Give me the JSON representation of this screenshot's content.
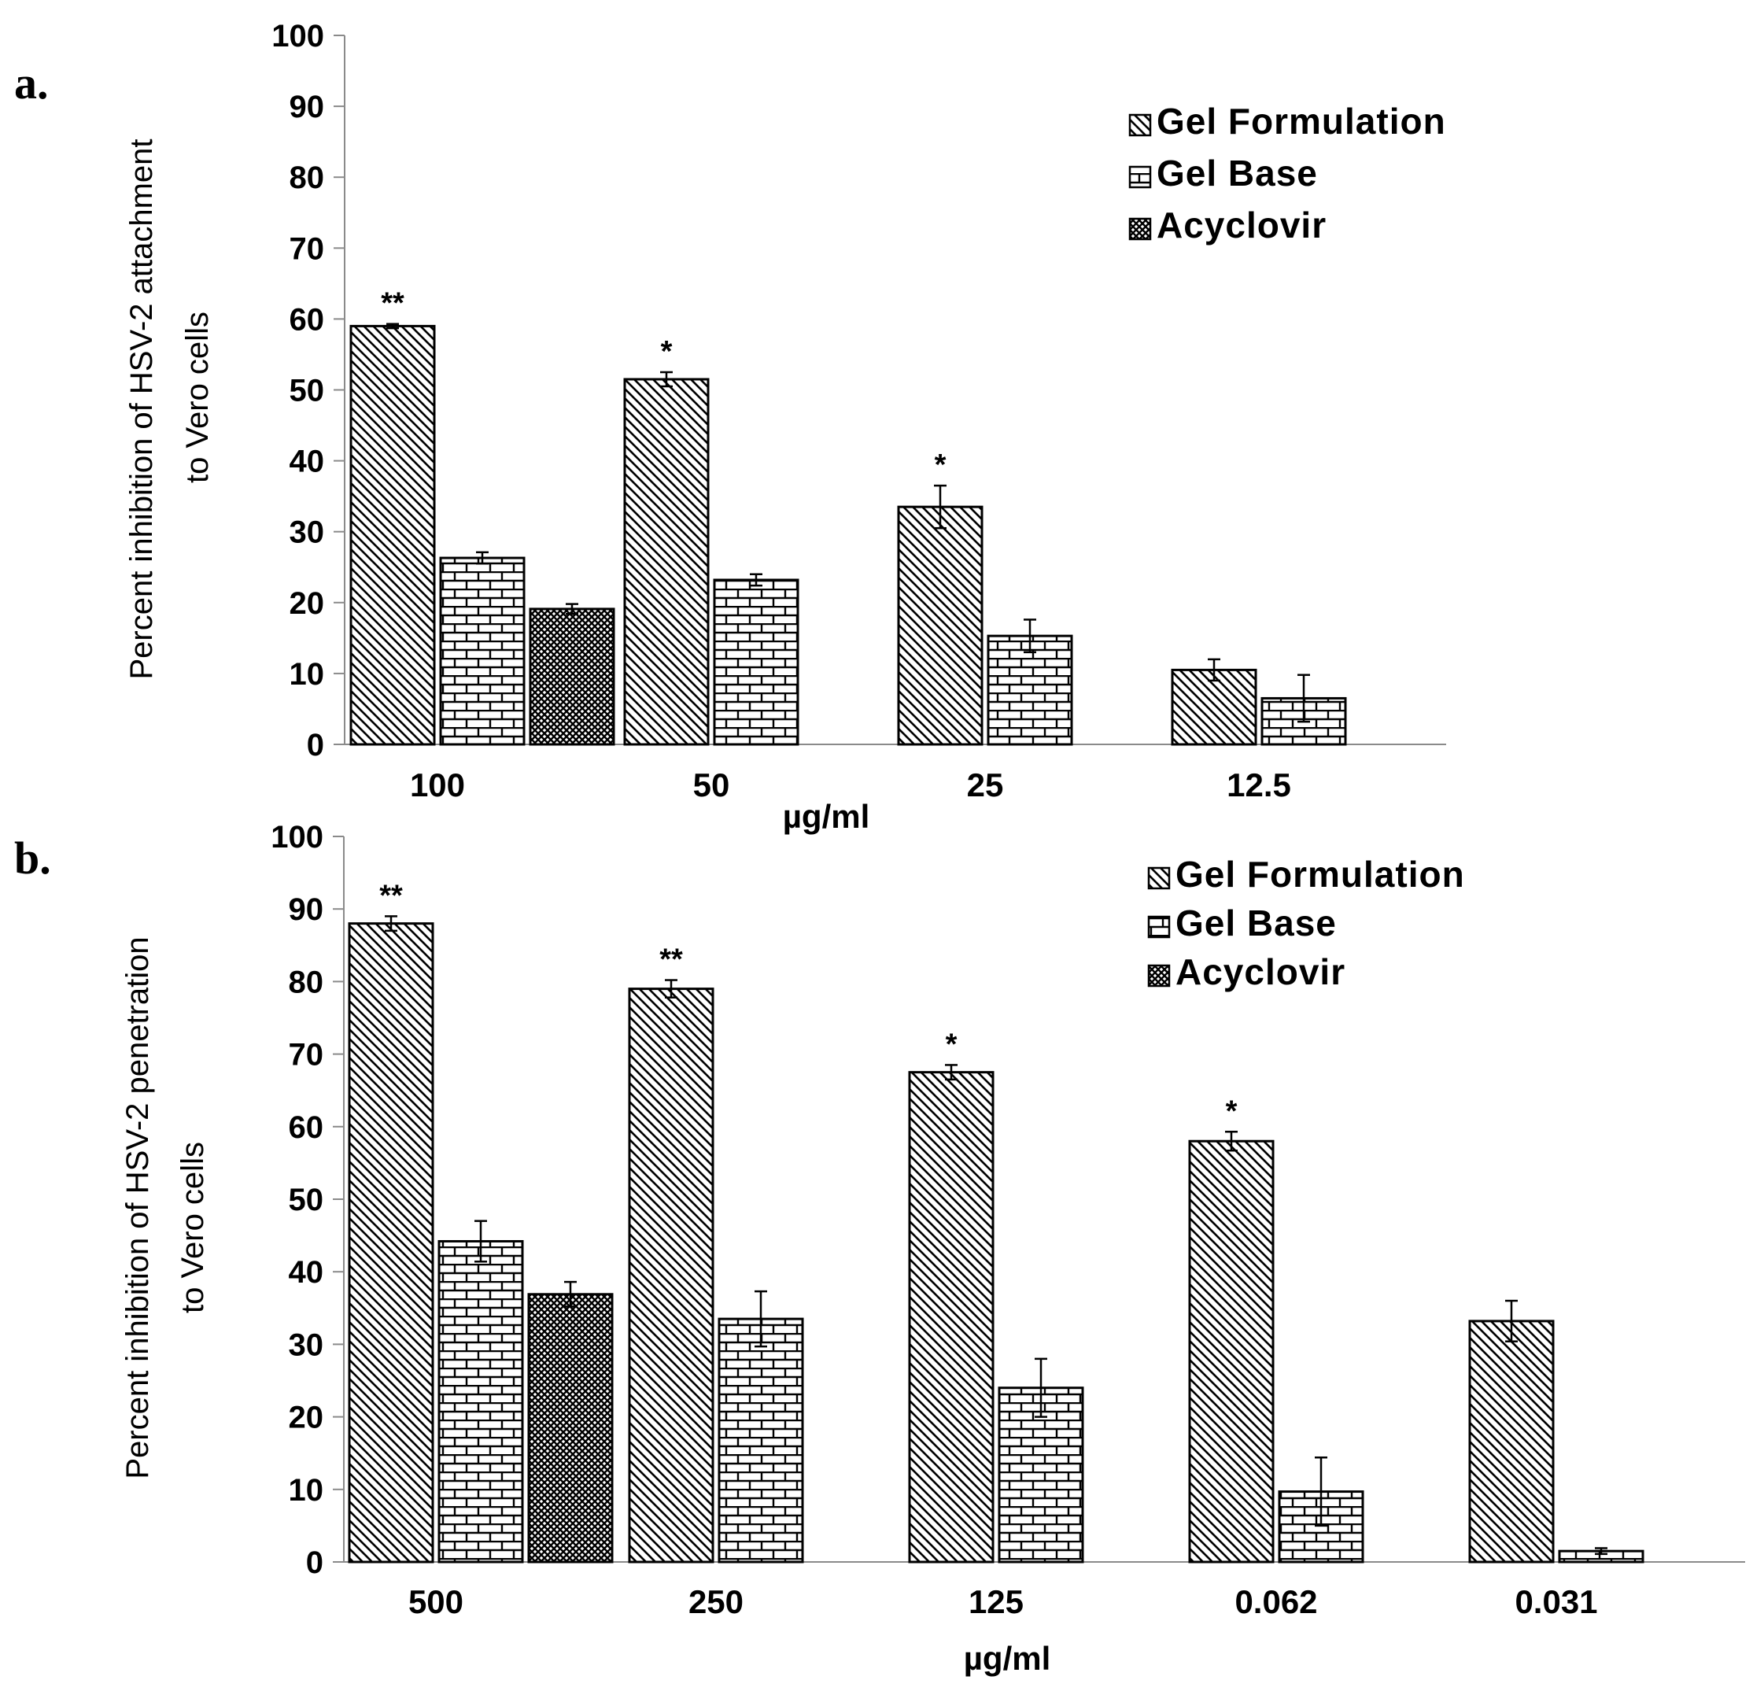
{
  "chart_data": [
    {
      "panel": "a.",
      "type": "bar",
      "categories": [
        "100",
        "50",
        "25",
        "12.5"
      ],
      "xlabel": "µg/ml",
      "ylabel_lines": [
        "Percent inhibition of HSV-2 attachment",
        "to Vero cells"
      ],
      "ylim": [
        0,
        100
      ],
      "yticks": [
        0,
        10,
        20,
        30,
        40,
        50,
        60,
        70,
        80,
        90,
        100
      ],
      "legend": [
        "Gel Formulation",
        "Gel Base",
        "Acyclovir"
      ],
      "series": [
        {
          "name": "Gel Formulation",
          "pattern": "diag",
          "values": [
            59,
            51.5,
            33.5,
            10.5
          ],
          "errors": [
            0.3,
            1.0,
            3.0,
            1.5
          ],
          "significance": [
            "**",
            "*",
            "*",
            ""
          ]
        },
        {
          "name": "Gel Base",
          "pattern": "brick",
          "values": [
            26.3,
            23.2,
            15.3,
            6.5
          ],
          "errors": [
            0.8,
            0.8,
            2.3,
            3.3
          ],
          "significance": [
            "",
            "",
            "",
            ""
          ]
        },
        {
          "name": "Acyclovir",
          "pattern": "cross",
          "values": [
            19.1,
            null,
            null,
            null
          ],
          "errors": [
            0.7,
            null,
            null,
            null
          ],
          "significance": [
            "",
            "",
            "",
            ""
          ]
        }
      ]
    },
    {
      "panel": "b.",
      "type": "bar",
      "categories": [
        "500",
        "250",
        "125",
        "0.062",
        "0.031"
      ],
      "xlabel": "µg/ml",
      "ylabel_lines": [
        "Percent inhibition of HSV-2 penetration",
        "to Vero cells"
      ],
      "ylim": [
        0,
        100
      ],
      "yticks": [
        0,
        10,
        20,
        30,
        40,
        50,
        60,
        70,
        80,
        90,
        100
      ],
      "legend": [
        "Gel Formulation",
        "Gel Base",
        "Acyclovir"
      ],
      "series": [
        {
          "name": "Gel Formulation",
          "pattern": "diag",
          "values": [
            88,
            79,
            67.5,
            58,
            33.2
          ],
          "errors": [
            1.0,
            1.2,
            1.0,
            1.3,
            2.8
          ],
          "significance": [
            "**",
            "**",
            "*",
            "*",
            ""
          ]
        },
        {
          "name": "Gel Base",
          "pattern": "brick",
          "values": [
            44.2,
            33.5,
            24,
            9.7,
            1.5
          ],
          "errors": [
            2.8,
            3.8,
            4.0,
            4.7,
            0.4
          ],
          "significance": [
            "",
            "",
            "",
            "",
            ""
          ]
        },
        {
          "name": "Acyclovir",
          "pattern": "cross",
          "values": [
            36.9,
            null,
            null,
            null,
            null
          ],
          "errors": [
            1.7,
            null,
            null,
            null,
            null
          ],
          "significance": [
            "",
            "",
            "",
            "",
            ""
          ]
        }
      ]
    }
  ]
}
